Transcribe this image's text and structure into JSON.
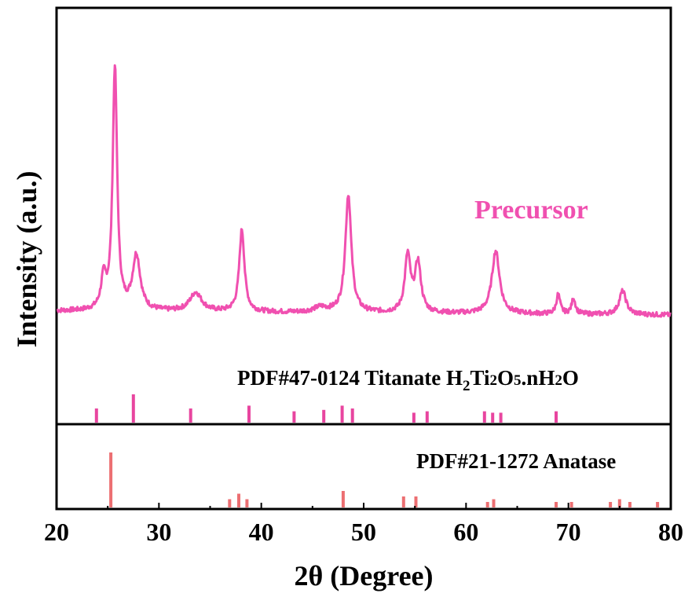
{
  "chart_data": {
    "type": "line",
    "xlabel": "2θ (Degree)",
    "ylabel": "Intensity (a.u.)",
    "xlim": [
      20,
      80
    ],
    "x_ticks": [
      "20",
      "30",
      "40",
      "50",
      "60",
      "70",
      "80"
    ],
    "colors": {
      "precursor": "#f050b0",
      "titanate": "#e8459f",
      "anatase": "#ec6f72"
    },
    "precursor": {
      "label": "Precursor",
      "baseline": 10,
      "peaks": [
        {
          "x": 24.6,
          "h": 38,
          "w": 0.3
        },
        {
          "x": 25.7,
          "h": 310,
          "w": 0.26
        },
        {
          "x": 27.8,
          "h": 70,
          "w": 0.45
        },
        {
          "x": 33.6,
          "h": 24,
          "w": 0.7
        },
        {
          "x": 38.1,
          "h": 105,
          "w": 0.3
        },
        {
          "x": 45.8,
          "h": 6,
          "w": 0.8
        },
        {
          "x": 48.5,
          "h": 150,
          "w": 0.35
        },
        {
          "x": 54.3,
          "h": 72,
          "w": 0.33
        },
        {
          "x": 55.3,
          "h": 63,
          "w": 0.35
        },
        {
          "x": 62.9,
          "h": 80,
          "w": 0.45
        },
        {
          "x": 69.0,
          "h": 25,
          "w": 0.22
        },
        {
          "x": 70.5,
          "h": 20,
          "w": 0.22
        },
        {
          "x": 75.3,
          "h": 30,
          "w": 0.4
        }
      ]
    },
    "reference_titanate": {
      "label_prefix": "PDF#47-0124 Titanate H",
      "formula_sub1": "2",
      "formula_mid1": "Ti",
      "formula_sub2": "2",
      "formula_mid2": "O",
      "formula_sub3": "5",
      "formula_mid3": ".nH",
      "formula_sub4": "2",
      "formula_end": "O",
      "lines": [
        {
          "x": 23.9,
          "h": 0.5
        },
        {
          "x": 27.5,
          "h": 1.0
        },
        {
          "x": 33.1,
          "h": 0.5
        },
        {
          "x": 38.8,
          "h": 0.6
        },
        {
          "x": 43.2,
          "h": 0.4
        },
        {
          "x": 46.1,
          "h": 0.45
        },
        {
          "x": 47.9,
          "h": 0.6
        },
        {
          "x": 48.9,
          "h": 0.5
        },
        {
          "x": 54.9,
          "h": 0.35
        },
        {
          "x": 56.2,
          "h": 0.4
        },
        {
          "x": 61.8,
          "h": 0.4
        },
        {
          "x": 62.6,
          "h": 0.35
        },
        {
          "x": 63.4,
          "h": 0.35
        },
        {
          "x": 68.8,
          "h": 0.4
        }
      ]
    },
    "reference_anatase": {
      "label": "PDF#21-1272 Anatase",
      "lines": [
        {
          "x": 25.3,
          "h": 1.0
        },
        {
          "x": 36.9,
          "h": 0.15
        },
        {
          "x": 37.8,
          "h": 0.25
        },
        {
          "x": 38.6,
          "h": 0.15
        },
        {
          "x": 48.0,
          "h": 0.3
        },
        {
          "x": 53.9,
          "h": 0.2
        },
        {
          "x": 55.1,
          "h": 0.2
        },
        {
          "x": 62.1,
          "h": 0.1
        },
        {
          "x": 62.7,
          "h": 0.15
        },
        {
          "x": 68.8,
          "h": 0.1
        },
        {
          "x": 70.3,
          "h": 0.1
        },
        {
          "x": 74.1,
          "h": 0.1
        },
        {
          "x": 75.0,
          "h": 0.15
        },
        {
          "x": 76.0,
          "h": 0.1
        },
        {
          "x": 78.7,
          "h": 0.1
        }
      ]
    }
  }
}
